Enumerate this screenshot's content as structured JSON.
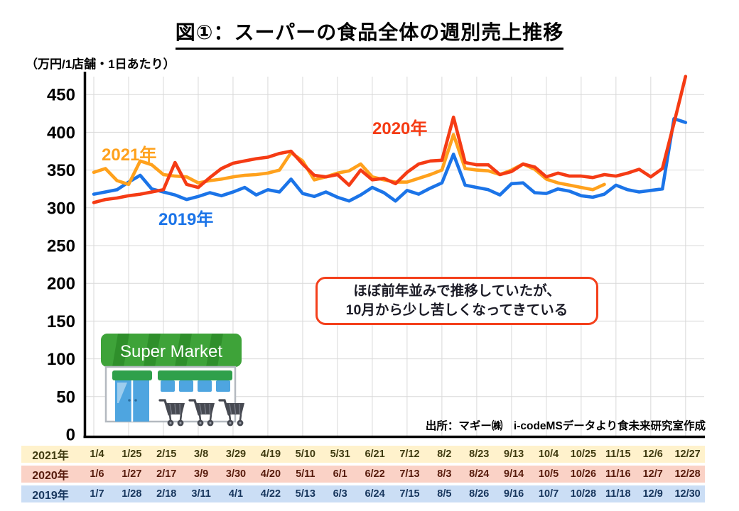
{
  "title": "図①：スーパーの食品全体の週別売上推移",
  "unit_label": "（万円/1店舗・1日あたり）",
  "source": "出所：マギー㈱　i-codeMSデータより食未来研究室作成",
  "annotation": {
    "line1": "ほぼ前年並みで推移していたが、",
    "line2": "10月から少し苦しくなってきている"
  },
  "illustration": {
    "sign_text": "Super Market"
  },
  "colors": {
    "accent_2021": "#ffa11c",
    "accent_2020": "#f53b14",
    "accent_2019": "#1b74e8",
    "grid": "#d9d9d9",
    "axis": "#000000",
    "callout_border": "#f4401c",
    "row_bg_2021": "#fff2cc",
    "row_bg_2020": "#fad2c6",
    "row_bg_2019": "#cbdef5"
  },
  "chart_data": {
    "type": "line",
    "title": "図①：スーパーの食品全体の週別売上推移",
    "ylabel": "（万円/1店舗・1日あたり）",
    "ylim": [
      0,
      480
    ],
    "y_ticks": [
      0,
      50,
      100,
      150,
      200,
      250,
      300,
      350,
      400,
      450
    ],
    "grid": true,
    "legend_position": "inline-labels",
    "x_unit": "week (52 weekly points, ticks every 3 weeks)",
    "series": [
      {
        "name": "2021年",
        "color": "#ffa11c",
        "values": [
          347,
          352,
          336,
          331,
          362,
          357,
          344,
          342,
          341,
          333,
          336,
          338,
          341,
          343,
          344,
          346,
          350,
          373,
          362,
          337,
          341,
          346,
          349,
          358,
          341,
          337,
          334,
          334,
          339,
          344,
          350,
          397,
          352,
          350,
          349,
          344,
          350,
          358,
          351,
          338,
          333,
          330,
          327,
          324,
          331,
          null,
          null,
          null,
          null,
          null,
          null,
          null
        ]
      },
      {
        "name": "2020年",
        "color": "#f53b14",
        "values": [
          307,
          311,
          313,
          316,
          318,
          321,
          324,
          360,
          331,
          327,
          340,
          352,
          359,
          362,
          365,
          367,
          372,
          375,
          358,
          343,
          341,
          344,
          330,
          350,
          337,
          339,
          332,
          347,
          358,
          362,
          363,
          420,
          360,
          357,
          357,
          344,
          348,
          358,
          354,
          341,
          346,
          342,
          342,
          340,
          344,
          342,
          346,
          351,
          341,
          352,
          412,
          474
        ]
      },
      {
        "name": "2019年",
        "color": "#1b74e8",
        "values": [
          318,
          321,
          324,
          334,
          343,
          325,
          321,
          317,
          311,
          315,
          320,
          316,
          321,
          327,
          317,
          324,
          321,
          338,
          319,
          315,
          321,
          314,
          309,
          317,
          327,
          320,
          309,
          323,
          318,
          326,
          333,
          371,
          330,
          327,
          324,
          317,
          332,
          333,
          320,
          319,
          325,
          322,
          316,
          314,
          318,
          330,
          324,
          321,
          323,
          325,
          418,
          413
        ]
      }
    ]
  },
  "bottom_table": {
    "rows": [
      {
        "year": "2021年",
        "bg": "#fff2cc",
        "fg": "#3f3a10",
        "dates": [
          "1/4",
          "1/25",
          "2/15",
          "3/8",
          "3/29",
          "4/19",
          "5/10",
          "5/31",
          "6/21",
          "7/12",
          "8/2",
          "8/23",
          "9/13",
          "10/4",
          "10/25",
          "11/15",
          "12/6",
          "12/27"
        ]
      },
      {
        "year": "2020年",
        "bg": "#fad2c6",
        "fg": "#571b0c",
        "dates": [
          "1/6",
          "1/27",
          "2/17",
          "3/9",
          "3/30",
          "4/20",
          "5/11",
          "6/1",
          "6/22",
          "7/13",
          "8/3",
          "8/24",
          "9/14",
          "10/5",
          "10/26",
          "11/16",
          "12/7",
          "12/28"
        ]
      },
      {
        "year": "2019年",
        "bg": "#cbdef5",
        "fg": "#17365d",
        "dates": [
          "1/7",
          "1/28",
          "2/18",
          "3/11",
          "4/1",
          "4/22",
          "5/13",
          "6/3",
          "6/24",
          "7/15",
          "8/5",
          "8/26",
          "9/16",
          "10/7",
          "10/28",
          "11/18",
          "12/9",
          "12/30"
        ]
      }
    ]
  }
}
